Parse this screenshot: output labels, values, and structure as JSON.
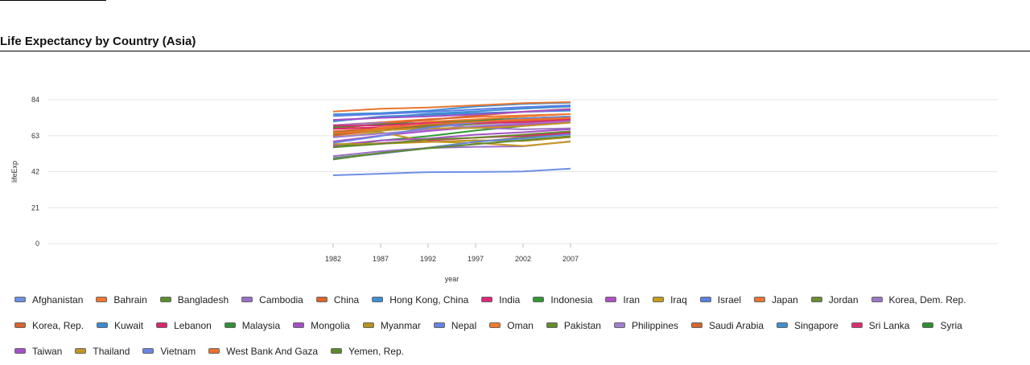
{
  "page": {
    "heading": "Life Expectancy by Country (Asia)"
  },
  "chart_data": {
    "type": "line",
    "title": "Life Expectancy by Country (Asia)",
    "xlabel": "year",
    "ylabel": "lifeExp",
    "x": [
      1982,
      1987,
      1992,
      1997,
      2002,
      2007
    ],
    "x_domain": [
      1952,
      2052
    ],
    "ylim": [
      0,
      84
    ],
    "yticks": [
      0,
      21,
      42,
      63,
      84
    ],
    "grid": true,
    "legend_position": "bottom",
    "series": [
      {
        "name": "Afghanistan",
        "color": "#6f8fe6",
        "values": [
          39.9,
          40.8,
          41.7,
          41.8,
          42.1,
          43.8
        ]
      },
      {
        "name": "Bahrain",
        "color": "#f0752d",
        "values": [
          69.1,
          70.8,
          72.6,
          73.9,
          74.8,
          75.6
        ]
      },
      {
        "name": "Bangladesh",
        "color": "#5a8f2b",
        "values": [
          50.0,
          52.8,
          56.0,
          59.4,
          62.0,
          64.1
        ]
      },
      {
        "name": "Cambodia",
        "color": "#9a6fc9",
        "values": [
          51.0,
          53.9,
          55.8,
          56.5,
          56.8,
          59.7
        ]
      },
      {
        "name": "China",
        "color": "#e0632a",
        "values": [
          65.5,
          67.3,
          68.7,
          70.4,
          72.0,
          73.0
        ]
      },
      {
        "name": "Hong Kong, China",
        "color": "#3d8fd6",
        "values": [
          75.5,
          76.2,
          77.6,
          80.0,
          81.5,
          82.2
        ]
      },
      {
        "name": "India",
        "color": "#e0267a",
        "values": [
          56.6,
          58.6,
          60.2,
          61.8,
          62.9,
          64.7
        ]
      },
      {
        "name": "Indonesia",
        "color": "#2f9a2f",
        "values": [
          56.2,
          60.1,
          62.7,
          66.0,
          68.6,
          70.7
        ]
      },
      {
        "name": "Iran",
        "color": "#b04ec7",
        "values": [
          59.6,
          63.0,
          65.7,
          68.0,
          69.5,
          71.0
        ]
      },
      {
        "name": "Iraq",
        "color": "#c89a1e",
        "values": [
          62.0,
          65.0,
          59.5,
          58.8,
          57.0,
          59.5
        ]
      },
      {
        "name": "Israel",
        "color": "#5c7ee6",
        "values": [
          74.5,
          75.6,
          76.9,
          78.3,
          79.7,
          80.7
        ]
      },
      {
        "name": "Japan",
        "color": "#e8762f",
        "values": [
          77.1,
          78.7,
          79.4,
          80.7,
          82.0,
          82.6
        ]
      },
      {
        "name": "Jordan",
        "color": "#6a8f2e",
        "values": [
          63.7,
          65.9,
          68.0,
          69.8,
          71.3,
          72.5
        ]
      },
      {
        "name": "Korea, Dem. Rep.",
        "color": "#9a77c6",
        "values": [
          69.1,
          70.6,
          69.9,
          67.7,
          66.7,
          67.3
        ]
      },
      {
        "name": "Korea, Rep.",
        "color": "#d9622c",
        "values": [
          67.1,
          69.8,
          72.2,
          74.6,
          77.0,
          78.6
        ]
      },
      {
        "name": "Kuwait",
        "color": "#3a8ad0",
        "values": [
          71.3,
          74.2,
          75.2,
          76.2,
          76.9,
          77.6
        ]
      },
      {
        "name": "Lebanon",
        "color": "#d8266e",
        "values": [
          66.9,
          67.9,
          69.3,
          70.3,
          71.0,
          72.0
        ]
      },
      {
        "name": "Malaysia",
        "color": "#2f9135",
        "values": [
          68.0,
          69.5,
          70.7,
          71.9,
          73.0,
          74.2
        ]
      },
      {
        "name": "Mongolia",
        "color": "#a551c4",
        "values": [
          57.5,
          60.2,
          61.3,
          63.6,
          65.0,
          66.8
        ]
      },
      {
        "name": "Myanmar",
        "color": "#b8921e",
        "values": [
          58.1,
          58.3,
          59.3,
          60.3,
          59.9,
          62.1
        ]
      },
      {
        "name": "Nepal",
        "color": "#6484e4",
        "values": [
          49.6,
          52.5,
          55.7,
          59.4,
          61.3,
          63.8
        ]
      },
      {
        "name": "Oman",
        "color": "#f07a2b",
        "values": [
          62.7,
          67.7,
          71.2,
          72.5,
          74.2,
          75.6
        ]
      },
      {
        "name": "Pakistan",
        "color": "#648a2c",
        "values": [
          56.2,
          58.2,
          60.8,
          61.8,
          63.6,
          65.5
        ]
      },
      {
        "name": "Philippines",
        "color": "#a07fcf",
        "values": [
          62.1,
          64.2,
          66.5,
          68.6,
          70.3,
          71.7
        ]
      },
      {
        "name": "Saudi Arabia",
        "color": "#d4652e",
        "values": [
          63.0,
          66.3,
          68.8,
          70.5,
          71.6,
          72.8
        ]
      },
      {
        "name": "Singapore",
        "color": "#3f8ed2",
        "values": [
          71.8,
          73.6,
          75.8,
          77.2,
          78.8,
          80.0
        ]
      },
      {
        "name": "Sri Lanka",
        "color": "#dc2c72",
        "values": [
          68.8,
          69.0,
          70.4,
          70.5,
          70.8,
          72.4
        ]
      },
      {
        "name": "Syria",
        "color": "#2c8f30",
        "values": [
          64.6,
          66.9,
          69.2,
          71.5,
          73.1,
          74.1
        ]
      },
      {
        "name": "Taiwan",
        "color": "#a44fc8",
        "values": [
          72.2,
          73.4,
          74.3,
          75.3,
          76.9,
          78.4
        ]
      },
      {
        "name": "Thailand",
        "color": "#c49420",
        "values": [
          64.6,
          66.1,
          67.3,
          67.5,
          68.6,
          70.6
        ]
      },
      {
        "name": "Vietnam",
        "color": "#6a86e2",
        "values": [
          58.8,
          62.8,
          67.7,
          70.7,
          73.0,
          74.2
        ]
      },
      {
        "name": "West Bank And Gaza",
        "color": "#ee702c",
        "values": [
          64.4,
          67.0,
          69.7,
          71.1,
          72.4,
          73.4
        ]
      },
      {
        "name": "Yemen, Rep.",
        "color": "#5e8a2a",
        "values": [
          49.1,
          52.9,
          55.6,
          58.0,
          60.3,
          62.7
        ]
      }
    ]
  }
}
